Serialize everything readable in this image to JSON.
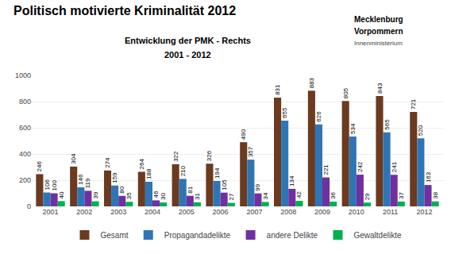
{
  "chart_data": {
    "type": "bar",
    "title": "Politisch motivierte Kriminalität 2012",
    "subtitle": [
      "Entwicklung der PMK - Rechts",
      "2001 - 2012"
    ],
    "annotations": [
      "Mecklenburg",
      "Vorpommern",
      "Innenministerium"
    ],
    "categories": [
      "2001",
      "2002",
      "2003",
      "2004",
      "2005",
      "2006",
      "2007",
      "2008",
      "2009",
      "2010",
      "2011",
      "2012"
    ],
    "series": [
      {
        "name": "Gesamt",
        "color": "#6B3A1F",
        "values": [
          246,
          304,
          274,
          264,
          322,
          326,
          490,
          831,
          883,
          805,
          843,
          721
        ]
      },
      {
        "name": "Propagandadelikte",
        "color": "#2E75B6",
        "values": [
          106,
          146,
          159,
          188,
          210,
          194,
          357,
          655,
          626,
          534,
          565,
          520
        ]
      },
      {
        "name": "andere Delikte",
        "color": "#7030A0",
        "values": [
          100,
          119,
          80,
          46,
          81,
          105,
          99,
          134,
          221,
          242,
          241,
          163
        ]
      },
      {
        "name": "Gewaltdelikte",
        "color": "#00B050",
        "values": [
          40,
          39,
          35,
          30,
          31,
          27,
          34,
          42,
          36,
          29,
          37,
          38
        ]
      }
    ],
    "ylim": [
      0,
      1000
    ],
    "yticks": [
      0,
      200,
      400,
      600,
      800,
      1000
    ],
    "grid": true,
    "legend": "bottom",
    "data_labels": true
  }
}
